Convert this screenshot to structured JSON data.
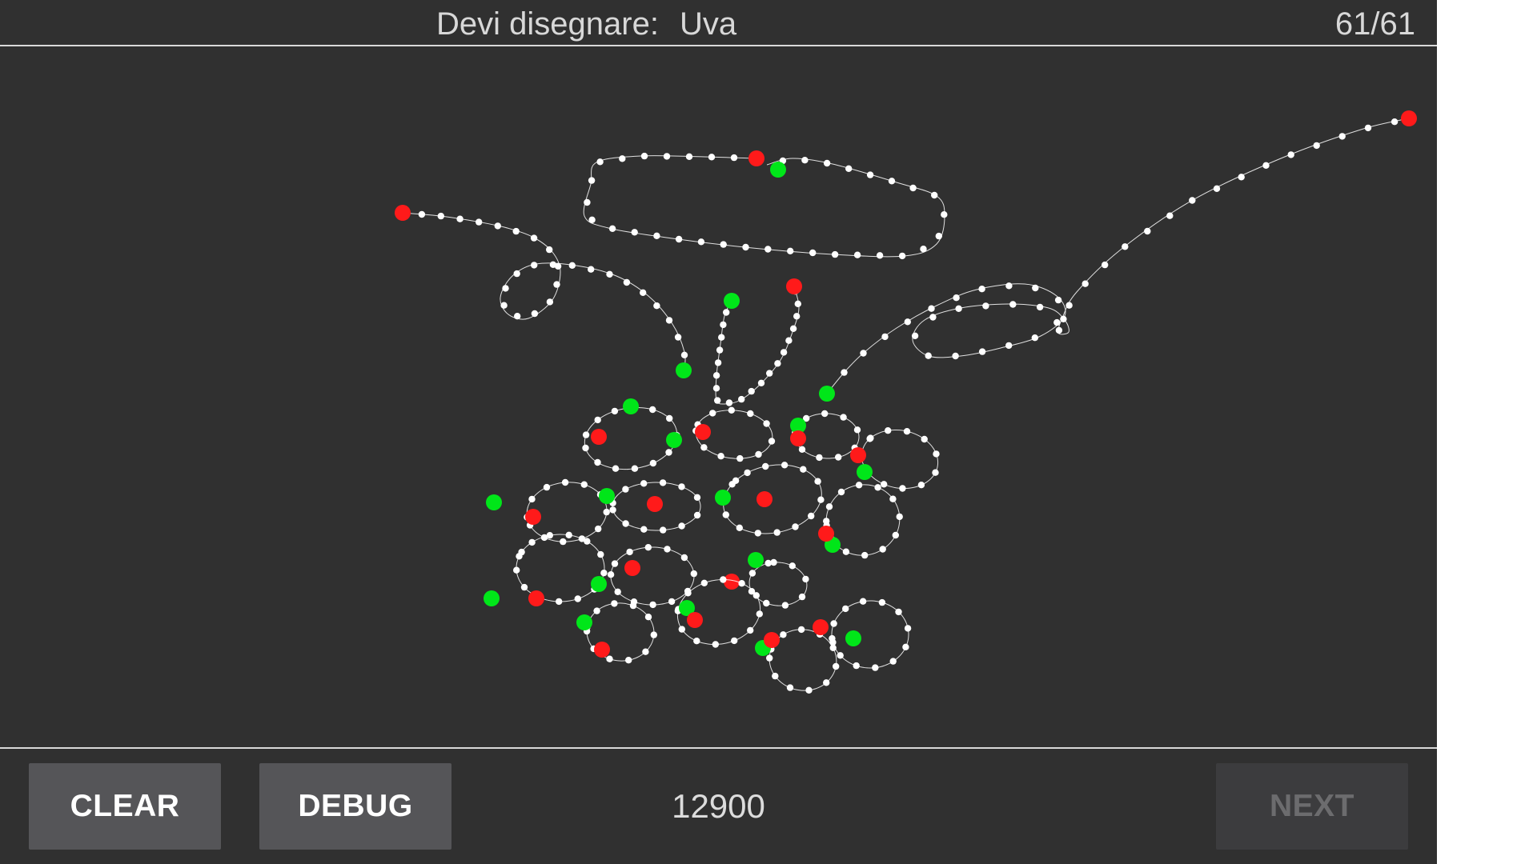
{
  "header": {
    "prompt_label": "Devi disegnare:",
    "target_word": "Uva",
    "counter": "61/61"
  },
  "toolbar": {
    "clear_label": "CLEAR",
    "debug_label": "DEBUG",
    "score": "12900",
    "next_label": "NEXT"
  },
  "colors": {
    "background": "#303030",
    "stroke_point": "#ffffff",
    "start_marker": "#00e619",
    "end_marker": "#ff1a1a",
    "button": "#555558",
    "button_disabled": "#3c3c3e"
  }
}
